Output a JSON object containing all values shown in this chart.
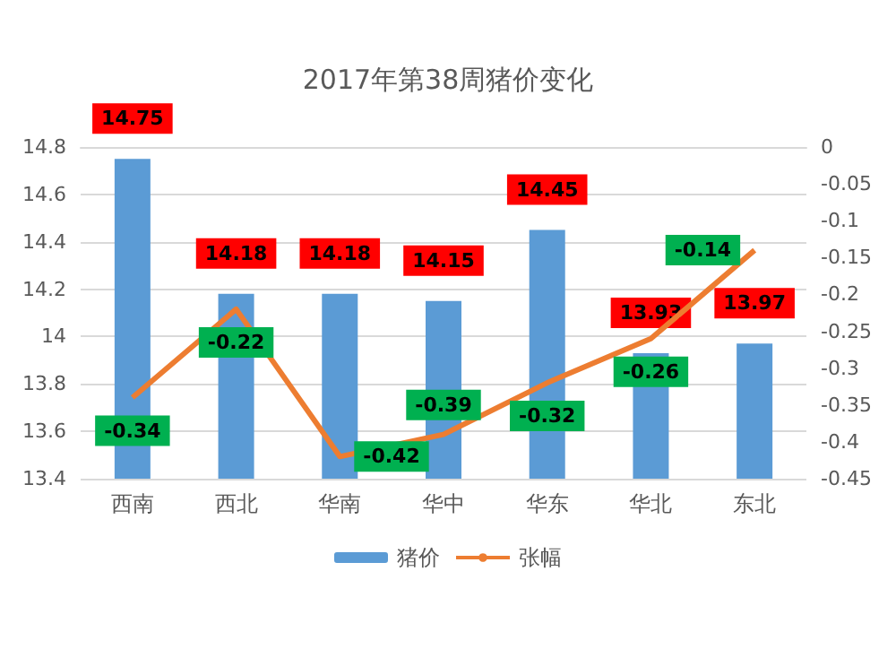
{
  "chart_data": {
    "type": "bar",
    "title": "2017年第38周猪价变化",
    "categories": [
      "西南",
      "西北",
      "华南",
      "华中",
      "华东",
      "华北",
      "东北"
    ],
    "series": [
      {
        "name": "猪价",
        "color": "#5b9bd5",
        "values": [
          14.75,
          14.18,
          14.18,
          14.15,
          14.45,
          13.93,
          13.97
        ]
      },
      {
        "name": "张幅",
        "type": "line",
        "axis": "y2",
        "color": "#ed7d31",
        "values": [
          -0.34,
          -0.22,
          -0.42,
          -0.39,
          -0.32,
          -0.26,
          -0.14
        ]
      }
    ],
    "ylim": [
      13.4,
      14.8
    ],
    "yticks": [
      13.4,
      13.6,
      13.8,
      14,
      14.2,
      14.4,
      14.6,
      14.8
    ],
    "y2lim": [
      -0.45,
      0
    ],
    "y2ticks": [
      -0.45,
      -0.4,
      -0.35,
      -0.3,
      -0.25,
      -0.2,
      -0.15,
      -0.1,
      -0.05,
      0
    ],
    "grid": "y",
    "legend": "bottom",
    "data_labels": true,
    "marker": "none"
  }
}
